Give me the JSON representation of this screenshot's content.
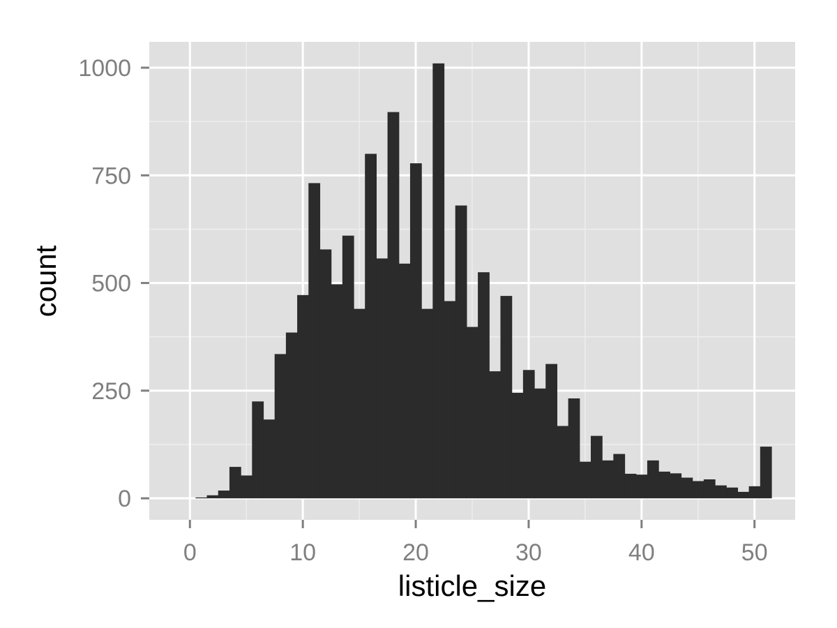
{
  "chart_data": {
    "type": "bar",
    "title": "",
    "xlabel": "listicle_size",
    "ylabel": "count",
    "xlim": [
      -3.6,
      53.6
    ],
    "ylim": [
      -50,
      1060
    ],
    "x_ticks": [
      0,
      10,
      20,
      30,
      40,
      50
    ],
    "x_tick_labels": [
      "0",
      "10",
      "20",
      "30",
      "40",
      "50"
    ],
    "y_ticks": [
      0,
      250,
      500,
      750,
      1000
    ],
    "y_tick_labels": [
      "0",
      "250",
      "500",
      "750",
      "1000"
    ],
    "grid": true,
    "bin_width": 1,
    "x": [
      1,
      2,
      3,
      4,
      5,
      6,
      7,
      8,
      9,
      10,
      11,
      12,
      13,
      14,
      15,
      16,
      17,
      18,
      19,
      20,
      21,
      22,
      23,
      24,
      25,
      26,
      27,
      28,
      29,
      30,
      31,
      32,
      33,
      34,
      35,
      36,
      37,
      38,
      39,
      40,
      41,
      42,
      43,
      44,
      45,
      46,
      47,
      48,
      49,
      50,
      51
    ],
    "values": [
      2,
      7,
      18,
      73,
      53,
      225,
      183,
      335,
      385,
      472,
      732,
      578,
      497,
      610,
      440,
      800,
      557,
      897,
      545,
      778,
      440,
      1010,
      458,
      680,
      398,
      525,
      295,
      470,
      245,
      298,
      255,
      312,
      168,
      232,
      85,
      145,
      88,
      103,
      57,
      55,
      88,
      62,
      58,
      48,
      40,
      44,
      30,
      25,
      15,
      28,
      120
    ],
    "colors": {
      "bar": "#2b2b2b",
      "panel": "#e0e0e0",
      "grid_major": "#ffffff",
      "grid_minor": "#eeeeee",
      "tick_text": "#7f7f7f",
      "axis_title": "#000000"
    }
  }
}
